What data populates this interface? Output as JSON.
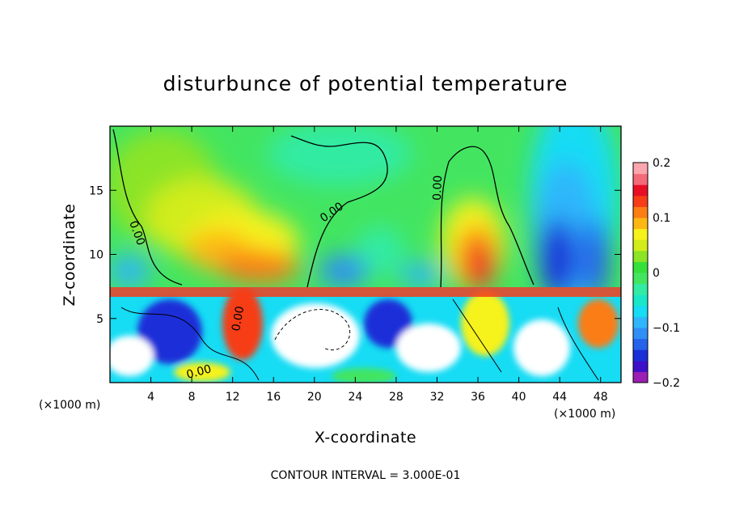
{
  "chart_data": {
    "type": "heatmap",
    "title": "disturbunce of potential temperature",
    "xlabel": "X-coordinate",
    "ylabel": "Z-coordinate",
    "x_unit": "(×1000 m)",
    "x_unit_right": "(×1000 m)",
    "xlim": [
      0,
      50
    ],
    "ylim": [
      0,
      20
    ],
    "x_ticks": [
      4,
      8,
      12,
      16,
      20,
      24,
      28,
      32,
      36,
      40,
      44,
      48
    ],
    "y_ticks": [
      5,
      10,
      15
    ],
    "colorbar": {
      "range": [
        -0.2,
        0.2
      ],
      "tick_values": [
        0.2,
        0.1,
        0,
        -0.1,
        -0.2
      ],
      "tick_labels": [
        "0.2",
        "0.1",
        "0",
        "−0.1",
        "−0.2"
      ],
      "colors": [
        "#9b1fb2",
        "#3d10c8",
        "#1a2fd8",
        "#2563ea",
        "#2f8ff5",
        "#2fb6fb",
        "#16dcf4",
        "#19e7c8",
        "#33eba3",
        "#43e560",
        "#35e03a",
        "#8be425",
        "#d2ec1a",
        "#f6f21a",
        "#fdb714",
        "#fb7d14",
        "#f63d17",
        "#e80f25",
        "#f36a78",
        "#fba6ad"
      ]
    },
    "contour_labels": [
      "0.00",
      "0.00",
      "0.00",
      "0.00",
      "0.00"
    ],
    "annotation": "CONTOUR INTERVAL = 3.000E-01"
  }
}
